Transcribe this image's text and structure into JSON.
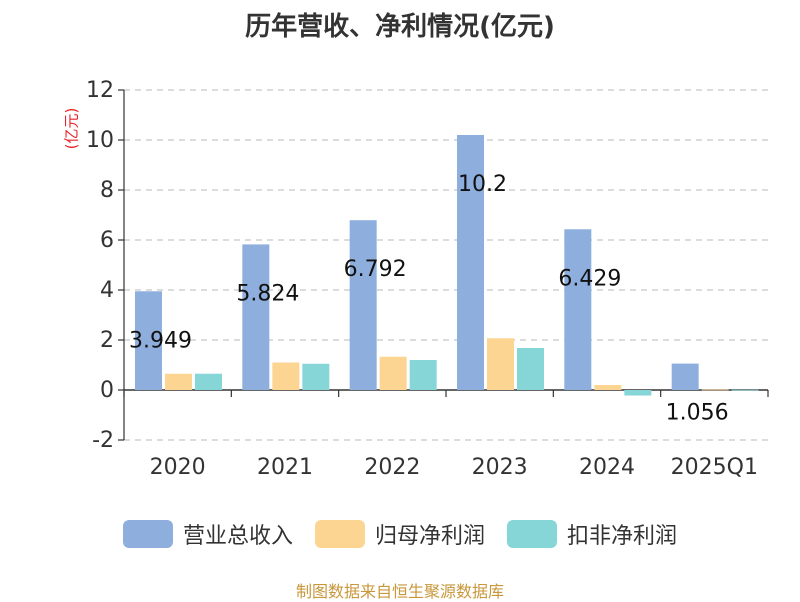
{
  "chart_data": {
    "type": "bar",
    "title": "历年营收、净利情况(亿元)",
    "unit_label": "(亿元)",
    "categories": [
      "2020",
      "2021",
      "2022",
      "2023",
      "2024",
      "2025Q1"
    ],
    "series": [
      {
        "name": "营业总收入",
        "color": "#8eaedd",
        "values": [
          3.949,
          5.824,
          6.792,
          10.2,
          6.429,
          1.056
        ]
      },
      {
        "name": "归母净利润",
        "color": "#fdd593",
        "values": [
          0.65,
          1.1,
          1.33,
          2.07,
          0.2,
          0.02
        ]
      },
      {
        "name": "扣非净利润",
        "color": "#86d6d8",
        "values": [
          0.65,
          1.05,
          1.2,
          1.68,
          -0.22,
          0.01
        ]
      }
    ],
    "data_labels": [
      "3.949",
      "5.824",
      "6.792",
      "10.2",
      "6.429",
      "1.056"
    ],
    "yticks": [
      -2,
      0,
      2,
      4,
      6,
      8,
      10,
      12
    ],
    "ylim": [
      -2,
      12
    ],
    "grid": "horizontal dashed",
    "legend_position": "bottom"
  },
  "source": "制图数据来自恒生聚源数据库"
}
